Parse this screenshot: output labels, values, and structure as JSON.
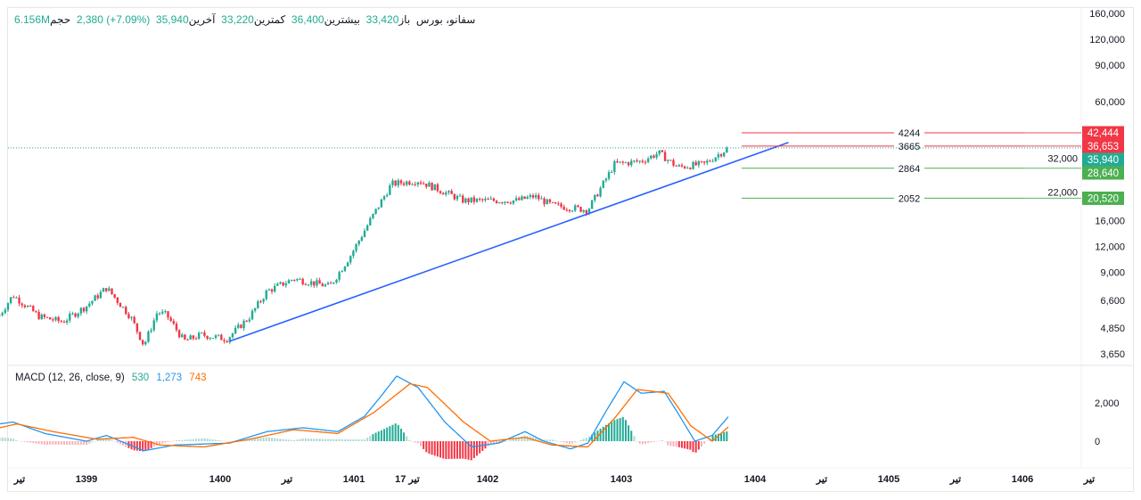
{
  "header": {
    "symbol": "سفانو، بورس",
    "open_label": "باز",
    "open": "33,420",
    "high_label": "بیشترین",
    "high": "36,400",
    "low_label": "کمترین",
    "low": "33,220",
    "close_label": "آخرین",
    "close": "35,940",
    "change": "2,380 (+7.09%)",
    "volume_label": "حجم",
    "volume": "6.156M"
  },
  "macd_legend": {
    "title": "MACD (12, 26, close, 9)",
    "histogram": "530",
    "macd": "1,273",
    "signal": "743"
  },
  "colors": {
    "up": "#22ab94",
    "down": "#f23645",
    "trendline": "#2962ff",
    "macd": "#2196f3",
    "signal": "#ff6d00",
    "resistance": "#f23645",
    "support": "#4caf50"
  },
  "chart_data": [
    {
      "type": "candlestick",
      "scale": "log",
      "y_ticks": [
        "160,000",
        "120,000",
        "90,000",
        "60,000",
        "32,000",
        "22,000",
        "16,000",
        "12,000",
        "9,000",
        "6,600",
        "4,850",
        "3,650"
      ],
      "y_tick_values": [
        160000,
        120000,
        90000,
        60000,
        32000,
        22000,
        16000,
        12000,
        9000,
        6600,
        4850,
        3650
      ],
      "x_ticks": [
        {
          "label": "تیر",
          "x": 1398.3
        },
        {
          "label": "1399",
          "x": 1399
        },
        {
          "label": "1400",
          "x": 1400
        },
        {
          "label": "تیر",
          "x": 1400.5
        },
        {
          "label": "1401",
          "x": 1401
        },
        {
          "label": "17 تیر",
          "x": 1401.4
        },
        {
          "label": "1402",
          "x": 1402
        },
        {
          "label": "1403",
          "x": 1403
        },
        {
          "label": "1404",
          "x": 1404
        },
        {
          "label": "تیر",
          "x": 1404.5
        },
        {
          "label": "1405",
          "x": 1405
        },
        {
          "label": "تیر",
          "x": 1405.5
        },
        {
          "label": "1406",
          "x": 1406
        },
        {
          "label": "تیر",
          "x": 1406.5
        }
      ],
      "x_range": [
        1398.35,
        1406.6
      ],
      "y_range": [
        3500,
        170000
      ],
      "price_path": [
        [
          1398.35,
          5600
        ],
        [
          1398.45,
          7000
        ],
        [
          1398.55,
          6200
        ],
        [
          1398.65,
          5500
        ],
        [
          1398.82,
          5200
        ],
        [
          1399.0,
          6200
        ],
        [
          1399.15,
          7600
        ],
        [
          1399.33,
          5500
        ],
        [
          1399.43,
          4000
        ],
        [
          1399.53,
          5800
        ],
        [
          1399.6,
          5600
        ],
        [
          1399.73,
          4200
        ],
        [
          1399.86,
          4500
        ],
        [
          1400.05,
          4300
        ],
        [
          1400.22,
          5500
        ],
        [
          1400.35,
          7300
        ],
        [
          1400.55,
          8400
        ],
        [
          1400.82,
          7700
        ],
        [
          1400.98,
          11000
        ],
        [
          1401.12,
          16000
        ],
        [
          1401.28,
          24000
        ],
        [
          1401.48,
          25000
        ],
        [
          1401.82,
          20000
        ],
        [
          1402.22,
          20000
        ],
        [
          1402.35,
          21000
        ],
        [
          1402.48,
          19000
        ],
        [
          1402.75,
          18000
        ],
        [
          1402.95,
          30000
        ],
        [
          1403.15,
          31000
        ],
        [
          1403.28,
          34000
        ],
        [
          1403.42,
          29000
        ],
        [
          1403.62,
          30000
        ],
        [
          1403.8,
          35940
        ]
      ],
      "last_price": "35,940",
      "horizontal_levels": [
        {
          "label": "4244",
          "price": 42444,
          "price_label": "42,444",
          "kind": "resistance"
        },
        {
          "label": "3665",
          "price": 36653,
          "price_label": "36,653",
          "kind": "resistance"
        },
        {
          "label": "2864",
          "price": 28640,
          "price_label": "28,640",
          "kind": "support"
        },
        {
          "label": "2052",
          "price": 20520,
          "price_label": "20,520",
          "kind": "support"
        }
      ],
      "trendline": [
        [
          1400.07,
          4190
        ],
        [
          1404.25,
          38100
        ]
      ]
    },
    {
      "type": "line",
      "title": "MACD (12, 26, close, 9)",
      "y_ticks": [
        "2,000",
        "0"
      ],
      "y_tick_values": [
        2000,
        0
      ],
      "series": [
        {
          "name": "MACD",
          "points": [
            [
              1398.35,
              900
            ],
            [
              1398.45,
              1000
            ],
            [
              1398.69,
              400
            ],
            [
              1399.0,
              0
            ],
            [
              1399.15,
              300
            ],
            [
              1399.43,
              -500
            ],
            [
              1399.66,
              -200
            ],
            [
              1400.07,
              -100
            ],
            [
              1400.35,
              500
            ],
            [
              1400.62,
              700
            ],
            [
              1400.88,
              500
            ],
            [
              1401.08,
              1300
            ],
            [
              1401.22,
              2500
            ],
            [
              1401.32,
              3400
            ],
            [
              1401.48,
              2800
            ],
            [
              1401.68,
              1000
            ],
            [
              1401.88,
              -300
            ],
            [
              1402.08,
              -100
            ],
            [
              1402.28,
              500
            ],
            [
              1402.42,
              0
            ],
            [
              1402.62,
              -400
            ],
            [
              1402.75,
              -100
            ],
            [
              1402.88,
              1500
            ],
            [
              1403.02,
              3100
            ],
            [
              1403.15,
              2500
            ],
            [
              1403.32,
              2600
            ],
            [
              1403.42,
              1500
            ],
            [
              1403.55,
              0
            ],
            [
              1403.68,
              300
            ],
            [
              1403.8,
              1273
            ]
          ]
        },
        {
          "name": "Signal",
          "points": [
            [
              1398.35,
              700
            ],
            [
              1398.48,
              900
            ],
            [
              1398.75,
              500
            ],
            [
              1399.08,
              100
            ],
            [
              1399.35,
              200
            ],
            [
              1399.55,
              -200
            ],
            [
              1399.88,
              -300
            ],
            [
              1400.22,
              100
            ],
            [
              1400.55,
              600
            ],
            [
              1400.88,
              400
            ],
            [
              1401.15,
              1500
            ],
            [
              1401.42,
              3000
            ],
            [
              1401.55,
              2800
            ],
            [
              1401.82,
              1000
            ],
            [
              1402.02,
              0
            ],
            [
              1402.28,
              200
            ],
            [
              1402.48,
              -200
            ],
            [
              1402.75,
              -300
            ],
            [
              1402.95,
              1200
            ],
            [
              1403.12,
              2700
            ],
            [
              1403.35,
              2500
            ],
            [
              1403.52,
              800
            ],
            [
              1403.68,
              0
            ],
            [
              1403.8,
              743
            ]
          ]
        }
      ]
    }
  ]
}
